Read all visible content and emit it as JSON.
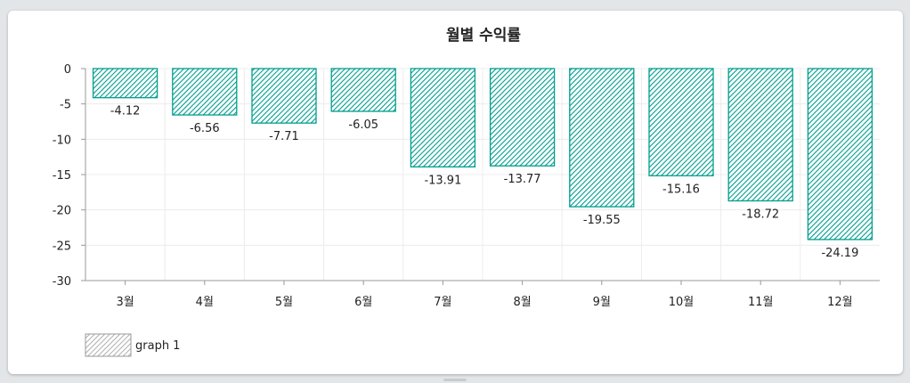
{
  "chart_data": {
    "type": "bar",
    "title": "월별 수익률",
    "categories": [
      "3월",
      "4월",
      "5월",
      "6월",
      "7월",
      "8월",
      "9월",
      "10월",
      "11월",
      "12월"
    ],
    "series": [
      {
        "name": "graph 1",
        "values": [
          -4.12,
          -6.56,
          -7.71,
          -6.05,
          -13.91,
          -13.77,
          -19.55,
          -15.16,
          -18.72,
          -24.19
        ],
        "data_labels": [
          "-4.12",
          "-6.56",
          "-7.71",
          "-6.05",
          "-13.91",
          "-13.77",
          "-19.55",
          "-15.16",
          "-18.72",
          "-24.19"
        ]
      }
    ],
    "yticks": [
      "0",
      "-5",
      "-10",
      "-15",
      "-20",
      "-25",
      "-30"
    ],
    "ylim": [
      -30,
      0
    ],
    "xlabel": "",
    "ylabel": "",
    "grid": true,
    "legend_position": "bottom-left",
    "colors": {
      "bar_stroke": "#009e8e",
      "bar_hatch": "#009e8e",
      "legend_hatch": "#9a9a9a",
      "grid": "#ececec"
    }
  }
}
